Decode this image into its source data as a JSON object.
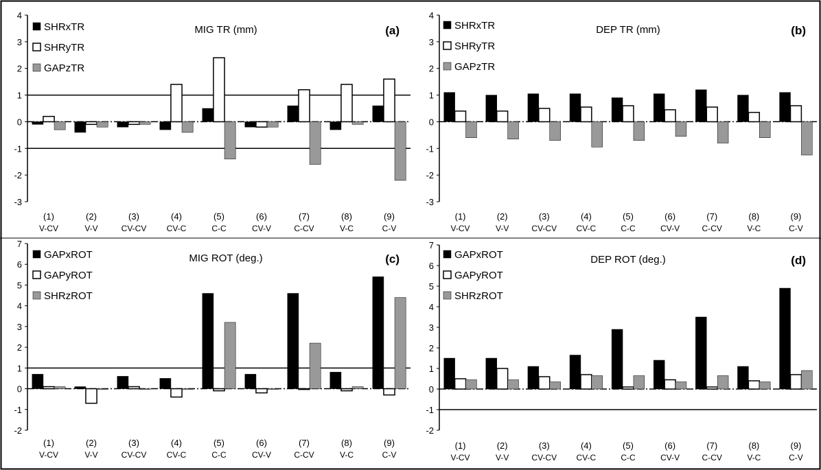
{
  "colors": {
    "series1": "#000000",
    "series2": "#ffffff",
    "series3": "#999999",
    "axis": "#000000"
  },
  "chart_data": [
    {
      "type": "bar",
      "panel_label": "(a)",
      "title": "MIG TR (mm)",
      "ylim": [
        -3,
        4
      ],
      "yticks": [
        -3,
        -2,
        -1,
        0,
        1,
        2,
        3,
        4
      ],
      "reference_lines": [
        1,
        -1
      ],
      "legend": "top-left",
      "categories": [
        "(1)",
        "(2)",
        "(3)",
        "(4)",
        "(5)",
        "(6)",
        "(7)",
        "(8)",
        "(9)"
      ],
      "category_sublabels": [
        "V-CV",
        "V-V",
        "CV-CV",
        "CV-C",
        "C-C",
        "CV-V",
        "C-CV",
        "V-C",
        "C-V"
      ],
      "series": [
        {
          "name": "SHRxTR",
          "values": [
            -0.1,
            -0.4,
            -0.2,
            -0.3,
            0.5,
            -0.2,
            0.6,
            -0.3,
            0.6
          ]
        },
        {
          "name": "SHRyTR",
          "values": [
            0.2,
            -0.1,
            -0.1,
            1.4,
            2.4,
            -0.2,
            1.2,
            1.4,
            1.6
          ]
        },
        {
          "name": "GAPzTR",
          "values": [
            -0.3,
            -0.2,
            -0.1,
            -0.4,
            -1.4,
            -0.2,
            -1.6,
            -0.1,
            -2.2
          ]
        }
      ]
    },
    {
      "type": "bar",
      "panel_label": "(b)",
      "title": "DEP TR (mm)",
      "ylim": [
        -3,
        4
      ],
      "yticks": [
        -3,
        -2,
        -1,
        0,
        1,
        2,
        3,
        4
      ],
      "reference_lines": [],
      "legend": "top-left",
      "categories": [
        "(1)",
        "(2)",
        "(3)",
        "(4)",
        "(5)",
        "(6)",
        "(7)",
        "(8)",
        "(9)"
      ],
      "category_sublabels": [
        "V-CV",
        "V-V",
        "CV-CV",
        "CV-C",
        "C-C",
        "CV-V",
        "C-CV",
        "V-C",
        "C-V"
      ],
      "series": [
        {
          "name": "SHRxTR",
          "values": [
            1.1,
            1.0,
            1.05,
            1.05,
            0.9,
            1.05,
            1.2,
            1.0,
            1.1
          ]
        },
        {
          "name": "SHRyTR",
          "values": [
            0.4,
            0.4,
            0.5,
            0.55,
            0.6,
            0.45,
            0.55,
            0.35,
            0.6
          ]
        },
        {
          "name": "GAPzTR",
          "values": [
            -0.6,
            -0.65,
            -0.7,
            -0.95,
            -0.7,
            -0.55,
            -0.8,
            -0.6,
            -1.25
          ]
        }
      ]
    },
    {
      "type": "bar",
      "panel_label": "(c)",
      "title": "MIG ROT (deg.)",
      "ylim": [
        -2,
        7
      ],
      "yticks": [
        -2,
        -1,
        0,
        1,
        2,
        3,
        4,
        5,
        6,
        7
      ],
      "reference_lines": [
        1
      ],
      "legend": "top-left",
      "categories": [
        "(1)",
        "(2)",
        "(3)",
        "(4)",
        "(5)",
        "(6)",
        "(7)",
        "(8)",
        "(9)"
      ],
      "category_sublabels": [
        "V-CV",
        "V-V",
        "CV-CV",
        "CV-C",
        "C-C",
        "CV-V",
        "C-CV",
        "V-C",
        "C-V"
      ],
      "series": [
        {
          "name": "GAPxROT",
          "values": [
            0.7,
            0.1,
            0.6,
            0.5,
            4.6,
            0.7,
            4.6,
            0.8,
            5.4
          ]
        },
        {
          "name": "GAPyROT",
          "values": [
            0.1,
            -0.7,
            0.1,
            -0.4,
            -0.1,
            -0.2,
            0.0,
            -0.1,
            -0.3
          ]
        },
        {
          "name": "SHRzROT",
          "values": [
            0.1,
            0.0,
            0.0,
            0.0,
            3.2,
            0.0,
            2.2,
            0.1,
            4.4
          ]
        }
      ]
    },
    {
      "type": "bar",
      "panel_label": "(d)",
      "title": "DEP ROT (deg.)",
      "ylim": [
        -2,
        7
      ],
      "yticks": [
        -2,
        -1,
        0,
        1,
        2,
        3,
        4,
        5,
        6,
        7
      ],
      "reference_lines": [
        -1
      ],
      "legend": "top-left",
      "categories": [
        "(1)",
        "(2)",
        "(3)",
        "(4)",
        "(5)",
        "(6)",
        "(7)",
        "(8)",
        "(9)"
      ],
      "category_sublabels": [
        "V-CV",
        "V-V",
        "CV-CV",
        "CV-C",
        "C-C",
        "CV-V",
        "C-CV",
        "V-C",
        "C-V"
      ],
      "series": [
        {
          "name": "GAPxROT",
          "values": [
            1.5,
            1.5,
            1.1,
            1.65,
            2.9,
            1.4,
            3.5,
            1.1,
            4.9
          ]
        },
        {
          "name": "GAPyROT",
          "values": [
            0.5,
            1.0,
            0.6,
            0.7,
            0.1,
            0.45,
            0.1,
            0.4,
            0.7
          ]
        },
        {
          "name": "SHRzROT",
          "values": [
            0.45,
            0.45,
            0.35,
            0.65,
            0.65,
            0.35,
            0.65,
            0.35,
            0.9
          ]
        }
      ]
    }
  ]
}
